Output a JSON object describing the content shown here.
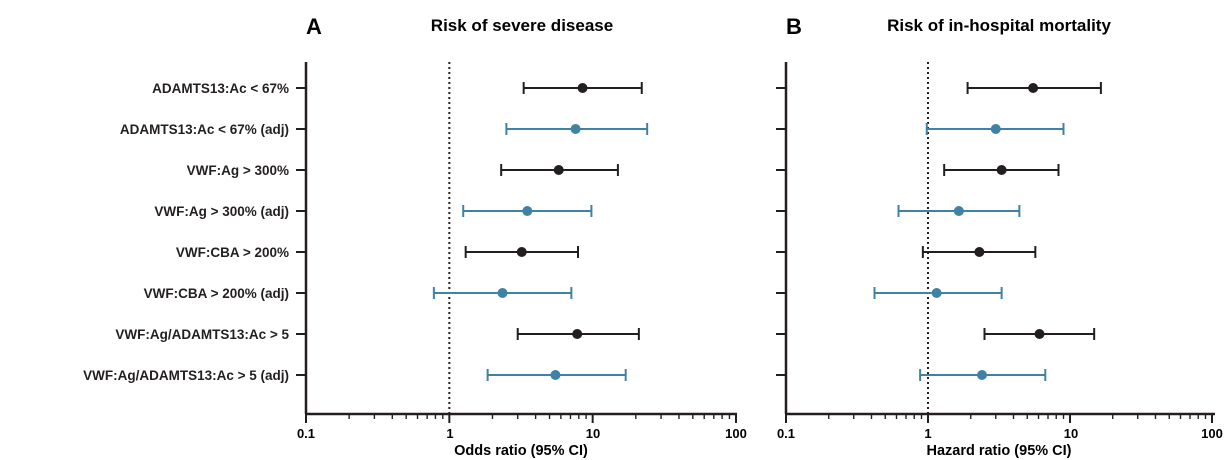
{
  "chart_data": [
    {
      "type": "forest",
      "panel_letter": "A",
      "title": "Risk of severe disease",
      "xlabel": "Odds ratio (95% CI)",
      "xscale": "log",
      "xlim": [
        0.1,
        100
      ],
      "xticks": [
        "0.1",
        "1",
        "10",
        "100"
      ],
      "reference_line": 1,
      "rows": [
        {
          "label": "ADAMTS13:Ac < 67%",
          "estimate": 8.5,
          "lower": 3.3,
          "upper": 22,
          "color": "#231f20"
        },
        {
          "label": "ADAMTS13:Ac < 67% (adj)",
          "estimate": 7.6,
          "lower": 2.5,
          "upper": 24,
          "color": "#3f82a4"
        },
        {
          "label": "VWF:Ag > 300%",
          "estimate": 5.8,
          "lower": 2.3,
          "upper": 15,
          "color": "#231f20"
        },
        {
          "label": "VWF:Ag > 300% (adj)",
          "estimate": 3.5,
          "lower": 1.25,
          "upper": 9.8,
          "color": "#3f82a4"
        },
        {
          "label": "VWF:CBA > 200%",
          "estimate": 3.2,
          "lower": 1.3,
          "upper": 7.9,
          "color": "#231f20"
        },
        {
          "label": "VWF:CBA > 200% (adj)",
          "estimate": 2.35,
          "lower": 0.78,
          "upper": 7.1,
          "color": "#3f82a4"
        },
        {
          "label": "VWF:Ag/ADAMTS13:Ac > 5",
          "estimate": 7.8,
          "lower": 3.0,
          "upper": 21,
          "color": "#231f20"
        },
        {
          "label": "VWF:Ag/ADAMTS13:Ac > 5 (adj)",
          "estimate": 5.5,
          "lower": 1.85,
          "upper": 17,
          "color": "#3f82a4"
        }
      ]
    },
    {
      "type": "forest",
      "panel_letter": "B",
      "title": "Risk of in-hospital mortality",
      "xlabel": "Hazard ratio (95% CI)",
      "xscale": "log",
      "xlim": [
        0.1,
        100
      ],
      "xticks": [
        "0.1",
        "1",
        "10",
        "100"
      ],
      "reference_line": 1,
      "rows": [
        {
          "estimate": 5.5,
          "lower": 1.9,
          "upper": 16.5,
          "color": "#231f20"
        },
        {
          "estimate": 3.0,
          "lower": 0.98,
          "upper": 9.0,
          "color": "#3f82a4"
        },
        {
          "estimate": 3.3,
          "lower": 1.3,
          "upper": 8.3,
          "color": "#231f20"
        },
        {
          "estimate": 1.65,
          "lower": 0.62,
          "upper": 4.4,
          "color": "#3f82a4"
        },
        {
          "estimate": 2.3,
          "lower": 0.92,
          "upper": 5.7,
          "color": "#231f20"
        },
        {
          "estimate": 1.15,
          "lower": 0.42,
          "upper": 3.3,
          "color": "#3f82a4"
        },
        {
          "estimate": 6.1,
          "lower": 2.5,
          "upper": 14.8,
          "color": "#231f20"
        },
        {
          "estimate": 2.4,
          "lower": 0.88,
          "upper": 6.7,
          "color": "#3f82a4"
        }
      ]
    }
  ]
}
